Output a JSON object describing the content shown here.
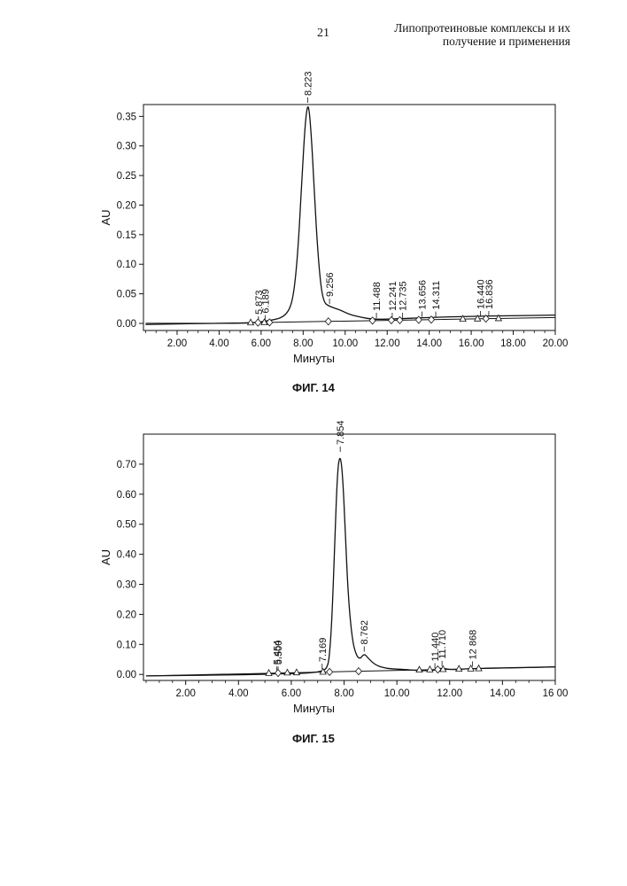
{
  "page": {
    "number": "21",
    "title_line1": "Липопротеиновые комплексы и их",
    "title_line2": "получение и применения"
  },
  "figures": [
    {
      "caption": "ФИГ. 14"
    },
    {
      "caption": "ФИГ. 15"
    }
  ],
  "chart_data": [
    {
      "type": "line",
      "title": "",
      "xlabel": "Минуты",
      "ylabel": "AU",
      "xlim": [
        0.4,
        20.0
      ],
      "ylim": [
        -0.012,
        0.37
      ],
      "x_ticks": [
        "2.00",
        "4.00",
        "6.00",
        "8.00",
        "10.00",
        "12.00",
        "14.00",
        "16.00",
        "18.00",
        "20.00"
      ],
      "y_ticks": [
        "0.00",
        "0.05",
        "0.10",
        "0.15",
        "0.20",
        "0.25",
        "0.30",
        "0.35"
      ],
      "trace": [
        [
          0.5,
          0.0
        ],
        [
          5.0,
          0.0
        ],
        [
          5.9,
          0.002
        ],
        [
          6.2,
          0.004
        ],
        [
          6.6,
          0.006
        ],
        [
          7.0,
          0.01
        ],
        [
          7.3,
          0.02
        ],
        [
          7.5,
          0.04
        ],
        [
          7.65,
          0.08
        ],
        [
          7.8,
          0.15
        ],
        [
          7.95,
          0.25
        ],
        [
          8.08,
          0.33
        ],
        [
          8.2,
          0.37
        ],
        [
          8.3,
          0.36
        ],
        [
          8.42,
          0.3
        ],
        [
          8.55,
          0.21
        ],
        [
          8.7,
          0.12
        ],
        [
          8.85,
          0.06
        ],
        [
          9.0,
          0.035
        ],
        [
          9.2,
          0.03
        ],
        [
          9.4,
          0.027
        ],
        [
          9.8,
          0.022
        ],
        [
          10.2,
          0.015
        ],
        [
          10.8,
          0.01
        ],
        [
          11.3,
          0.007
        ],
        [
          12.0,
          0.007
        ],
        [
          14.0,
          0.01
        ],
        [
          16.0,
          0.012
        ],
        [
          18.0,
          0.013
        ],
        [
          20.0,
          0.014
        ]
      ],
      "baseline": [
        [
          0.5,
          -0.002
        ],
        [
          20.0,
          0.01
        ]
      ],
      "peaks": [
        {
          "label": "5.873",
          "x": 5.873,
          "y": 0.0
        },
        {
          "label": "6.189",
          "x": 6.189,
          "y": 0.002
        },
        {
          "label": "8.223",
          "x": 8.223,
          "y": 0.37
        },
        {
          "label": "9.256",
          "x": 9.256,
          "y": 0.03
        },
        {
          "label": "11.488",
          "x": 11.488,
          "y": 0.006
        },
        {
          "label": "12.241",
          "x": 12.241,
          "y": 0.006
        },
        {
          "label": "12.735",
          "x": 12.735,
          "y": 0.006
        },
        {
          "label": "13.656",
          "x": 13.656,
          "y": 0.008
        },
        {
          "label": "14.311",
          "x": 14.311,
          "y": 0.008
        },
        {
          "label": "16.440",
          "x": 16.44,
          "y": 0.009
        },
        {
          "label": "16.836",
          "x": 16.836,
          "y": 0.009
        }
      ],
      "markers": [
        {
          "shape": "triangle",
          "x": 5.5
        },
        {
          "shape": "diamond",
          "x": 5.85
        },
        {
          "shape": "triangle",
          "x": 6.15
        },
        {
          "shape": "diamond",
          "x": 6.4
        },
        {
          "shape": "diamond",
          "x": 9.2
        },
        {
          "shape": "diamond",
          "x": 11.3
        },
        {
          "shape": "diamond",
          "x": 12.2
        },
        {
          "shape": "diamond",
          "x": 12.6
        },
        {
          "shape": "diamond",
          "x": 13.5
        },
        {
          "shape": "diamond",
          "x": 14.1
        },
        {
          "shape": "triangle",
          "x": 15.6
        },
        {
          "shape": "triangle",
          "x": 16.3
        },
        {
          "shape": "diamond",
          "x": 16.7
        },
        {
          "shape": "triangle",
          "x": 17.3
        }
      ],
      "grid": false
    },
    {
      "type": "line",
      "title": "",
      "xlabel": "Минуты",
      "ylabel": "AU",
      "xlim": [
        0.4,
        16.0
      ],
      "ylim": [
        -0.02,
        0.8
      ],
      "x_ticks": [
        "2.00",
        "4.00",
        "6.00",
        "8.00",
        "10.00",
        "12.00",
        "14.00",
        "16 00"
      ],
      "y_ticks": [
        "0.00",
        "0.10",
        "0.20",
        "0.30",
        "0.40",
        "0.50",
        "0.60",
        "0.70"
      ],
      "trace": [
        [
          0.5,
          -0.005
        ],
        [
          5.0,
          0.0
        ],
        [
          5.45,
          0.003
        ],
        [
          5.6,
          0.002
        ],
        [
          6.5,
          0.004
        ],
        [
          7.0,
          0.008
        ],
        [
          7.17,
          0.012
        ],
        [
          7.35,
          0.02
        ],
        [
          7.45,
          0.06
        ],
        [
          7.55,
          0.2
        ],
        [
          7.65,
          0.45
        ],
        [
          7.75,
          0.68
        ],
        [
          7.85,
          0.735
        ],
        [
          7.95,
          0.66
        ],
        [
          8.05,
          0.47
        ],
        [
          8.15,
          0.27
        ],
        [
          8.3,
          0.12
        ],
        [
          8.45,
          0.065
        ],
        [
          8.6,
          0.05
        ],
        [
          8.76,
          0.07
        ],
        [
          8.9,
          0.055
        ],
        [
          9.2,
          0.03
        ],
        [
          9.6,
          0.02
        ],
        [
          10.0,
          0.018
        ],
        [
          11.0,
          0.012
        ],
        [
          11.44,
          0.014
        ],
        [
          11.71,
          0.022
        ],
        [
          12.0,
          0.015
        ],
        [
          12.87,
          0.02
        ],
        [
          14.0,
          0.022
        ],
        [
          16.0,
          0.025
        ]
      ],
      "baseline": [
        [
          0.5,
          -0.005
        ],
        [
          16.0,
          0.025
        ]
      ],
      "peaks": [
        {
          "label": "5.454",
          "x": 5.454,
          "y": 0.003
        },
        {
          "label": "5.500",
          "x": 5.5,
          "y": 0.003
        },
        {
          "label": "7.169",
          "x": 7.169,
          "y": 0.012
        },
        {
          "label": "7.854",
          "x": 7.854,
          "y": 0.735
        },
        {
          "label": "8.762",
          "x": 8.762,
          "y": 0.07
        },
        {
          "label": "11.440",
          "x": 11.44,
          "y": 0.014
        },
        {
          "label": "11.710",
          "x": 11.71,
          "y": 0.022
        },
        {
          "label": "12 868",
          "x": 12.868,
          "y": 0.02
        }
      ],
      "markers": [
        {
          "shape": "triangle",
          "x": 5.15
        },
        {
          "shape": "diamond",
          "x": 5.5
        },
        {
          "shape": "triangle",
          "x": 5.85
        },
        {
          "shape": "triangle",
          "x": 6.2
        },
        {
          "shape": "triangle",
          "x": 7.2
        },
        {
          "shape": "diamond",
          "x": 7.45
        },
        {
          "shape": "diamond",
          "x": 8.55
        },
        {
          "shape": "triangle",
          "x": 10.85
        },
        {
          "shape": "triangle",
          "x": 11.25
        },
        {
          "shape": "diamond",
          "x": 11.55
        },
        {
          "shape": "triangle",
          "x": 11.75
        },
        {
          "shape": "triangle",
          "x": 12.35
        },
        {
          "shape": "triangle",
          "x": 12.8
        },
        {
          "shape": "triangle",
          "x": 13.1
        }
      ],
      "grid": false
    }
  ]
}
